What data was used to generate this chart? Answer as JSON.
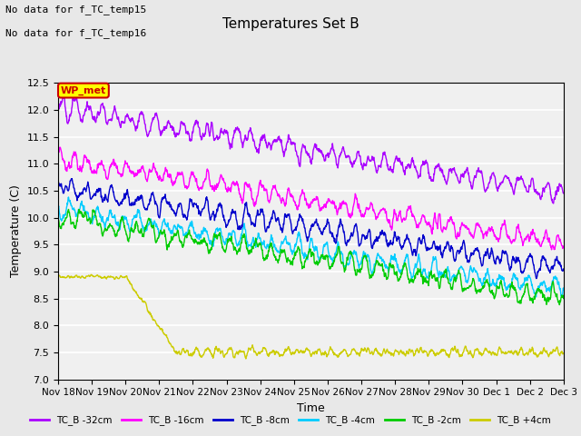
{
  "title": "Temperatures Set B",
  "xlabel": "Time",
  "ylabel": "Temperature (C)",
  "ylim": [
    7.0,
    12.5
  ],
  "yticks": [
    7.0,
    7.5,
    8.0,
    8.5,
    9.0,
    9.5,
    10.0,
    10.5,
    11.0,
    11.5,
    12.0,
    12.5
  ],
  "xtick_labels": [
    "Nov 18",
    "Nov 19",
    "Nov 20",
    "Nov 21",
    "Nov 22",
    "Nov 23",
    "Nov 24",
    "Nov 25",
    "Nov 26",
    "Nov 27",
    "Nov 28",
    "Nov 29",
    "Nov 30",
    "Dec 1",
    "Dec 2",
    "Dec 3"
  ],
  "n_points": 1600,
  "text_no_data1": "No data for f_TC_temp15",
  "text_no_data2": "No data for f_TC_temp16",
  "wp_met_label": "WP_met",
  "wp_met_color": "#cc0000",
  "wp_met_bg": "#ffff00",
  "legend_labels": [
    "TC_B -32cm",
    "TC_B -16cm",
    "TC_B -8cm",
    "TC_B -4cm",
    "TC_B -2cm",
    "TC_B +4cm"
  ],
  "line_colors": [
    "#aa00ff",
    "#ff00ff",
    "#0000cc",
    "#00ccff",
    "#00cc00",
    "#cccc00"
  ],
  "series_starts": [
    12.05,
    11.1,
    10.55,
    10.15,
    10.0,
    8.9
  ],
  "series_ends": [
    10.45,
    9.5,
    9.05,
    8.65,
    8.5,
    7.5
  ],
  "background_color": "#e8e8e8",
  "plot_bg": "#f0f0f0",
  "grid_color": "#ffffff",
  "figwidth": 6.4,
  "figheight": 4.8,
  "dpi": 100
}
